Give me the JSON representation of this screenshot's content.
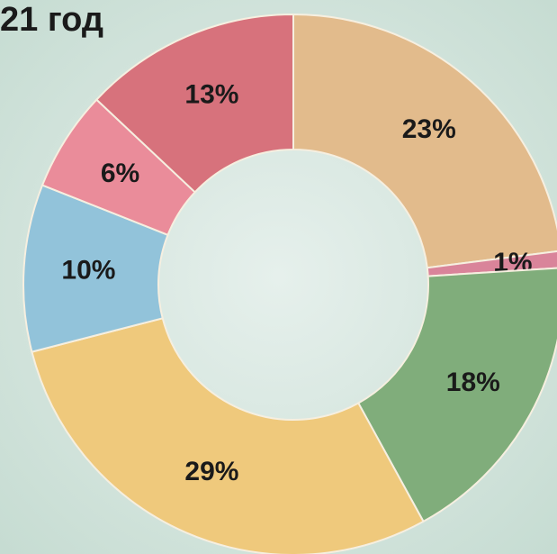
{
  "chart_data": {
    "type": "donut",
    "title": "21 год",
    "categories": [
      null,
      null,
      null,
      null,
      null,
      null,
      null
    ],
    "values": [
      23,
      1,
      18,
      29,
      10,
      6,
      13
    ],
    "value_labels": [
      "23%",
      "1%",
      "18%",
      "29%",
      "10%",
      "6%",
      "13%"
    ],
    "colors": [
      "#e2bb8c",
      "#d9849a",
      "#80ad7b",
      "#efc97c",
      "#92c3da",
      "#ea8c9a",
      "#d7727c"
    ]
  }
}
